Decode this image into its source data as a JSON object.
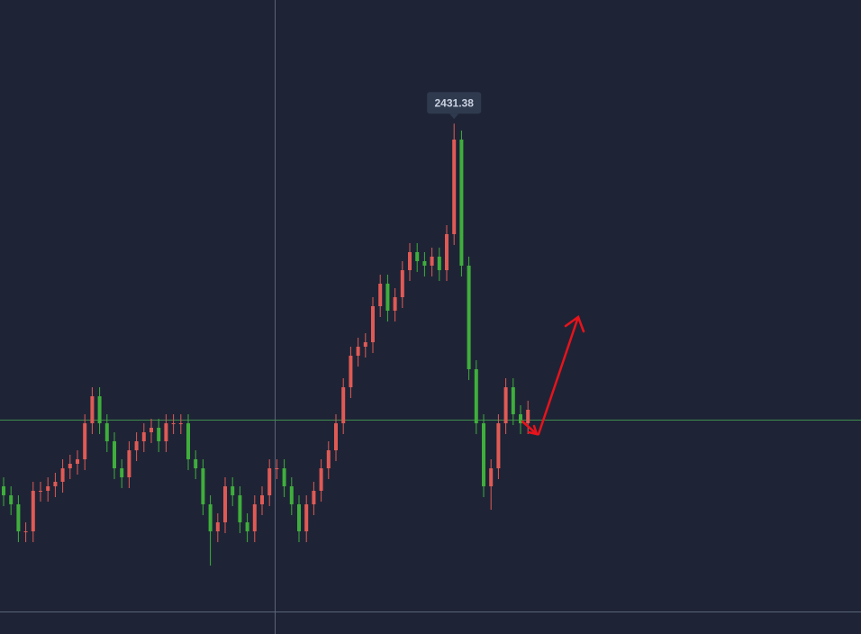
{
  "chart_data": {
    "type": "candlestick",
    "up_color": "#e05a55",
    "down_color": "#3fae3c",
    "ylim": [
      2148,
      2500
    ],
    "open": [
      2230,
      2225,
      2220,
      2205,
      2205,
      2227.5,
      2227.5,
      2230,
      2232.5,
      2240,
      2242.5,
      2245,
      2265,
      2280,
      2265,
      2255,
      2240,
      2235,
      2250,
      2255,
      2260,
      2262.5,
      2255,
      2265,
      2265,
      2265,
      2245,
      2240,
      2220,
      2205,
      2210,
      2230,
      2225,
      2210,
      2205,
      2220,
      2225,
      2240,
      2240,
      2230,
      2220,
      2205,
      2220,
      2227.5,
      2240,
      2250,
      2265,
      2285,
      2302.5,
      2307.5,
      2310,
      2330,
      2342.5,
      2327.5,
      2335,
      2350,
      2360,
      2355,
      2352.5,
      2357.5,
      2350,
      2370,
      2422.5,
      2352.5,
      2295,
      2265,
      2230,
      2240,
      2265,
      2285,
      2270,
      2265
    ],
    "high": [
      2235,
      2230,
      2225,
      2210,
      2232.5,
      2232.5,
      2235,
      2237.5,
      2245,
      2247.5,
      2250,
      2270,
      2285,
      2285,
      2270,
      2260,
      2245,
      2255,
      2260,
      2265,
      2267.5,
      2267.5,
      2270,
      2270,
      2270,
      2270,
      2250,
      2245,
      2225,
      2215,
      2235,
      2235,
      2230,
      2215,
      2225,
      2230,
      2245,
      2245,
      2245,
      2235,
      2225,
      2225,
      2232.5,
      2245,
      2255,
      2270,
      2290,
      2307.5,
      2312.5,
      2315,
      2335,
      2347.5,
      2347.5,
      2340,
      2355,
      2365,
      2365,
      2360,
      2362.5,
      2362.5,
      2375,
      2431.38,
      2427.5,
      2357.5,
      2300,
      2270,
      2245,
      2270,
      2290,
      2290,
      2275,
      2277.5
    ],
    "low": [
      2219,
      2214,
      2199,
      2199,
      2199,
      2221.5,
      2221.5,
      2224,
      2226.5,
      2234,
      2236.5,
      2239,
      2259,
      2259,
      2249,
      2234,
      2229,
      2229,
      2244,
      2249,
      2254,
      2249,
      2249,
      2259,
      2259,
      2239,
      2234,
      2214,
      2186,
      2199,
      2204,
      2219,
      2204,
      2199,
      2199,
      2214,
      2219,
      2234,
      2224,
      2214,
      2199,
      2199,
      2214,
      2221.5,
      2234,
      2244,
      2259,
      2279,
      2296.5,
      2301.5,
      2304,
      2324,
      2321.5,
      2321.5,
      2329,
      2344,
      2349,
      2346.5,
      2346.5,
      2344,
      2344,
      2364,
      2346.5,
      2289,
      2259,
      2224,
      2217,
      2234,
      2259,
      2264,
      2259,
      2259
    ],
    "close": [
      2225,
      2220,
      2205,
      2205,
      2227.5,
      2227.5,
      2230,
      2232.5,
      2240,
      2242.5,
      2245,
      2265,
      2280,
      2265,
      2255,
      2240,
      2235,
      2250,
      2255,
      2260,
      2262.5,
      2255,
      2265,
      2265,
      2265,
      2245,
      2240,
      2220,
      2205,
      2210,
      2230,
      2225,
      2210,
      2205,
      2220,
      2225,
      2240,
      2240,
      2230,
      2220,
      2205,
      2220,
      2227.5,
      2240,
      2250,
      2265,
      2285,
      2302.5,
      2307.5,
      2310,
      2330,
      2342.5,
      2327.5,
      2335,
      2350,
      2360,
      2355,
      2352.5,
      2357.5,
      2350,
      2370,
      2422.5,
      2352.5,
      2295,
      2265,
      2230,
      2240,
      2265,
      2285,
      2270,
      2265,
      2272.5
    ]
  }
}
